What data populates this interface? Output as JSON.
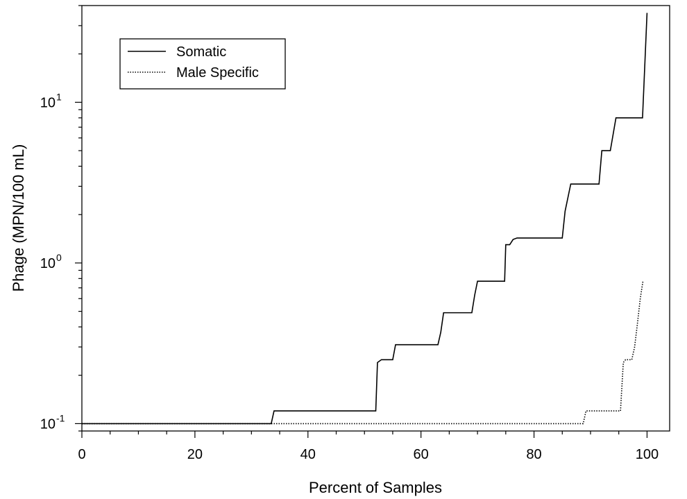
{
  "chart_data": {
    "type": "line",
    "xlabel": "Percent of Samples",
    "ylabel": "Phage (MPN/100 mL)",
    "xlim": [
      0,
      104
    ],
    "ylim": [
      0.09,
      40
    ],
    "yscale": "log",
    "x_ticks": [
      0,
      20,
      40,
      60,
      80,
      100
    ],
    "y_ticks": [
      {
        "value": 0.1,
        "base": "10",
        "exp": "-1"
      },
      {
        "value": 1,
        "base": "10",
        "exp": "0"
      },
      {
        "value": 10,
        "base": "10",
        "exp": "1"
      }
    ],
    "grid": false,
    "legend_position": "top-left",
    "series": [
      {
        "name": "Somatic",
        "style": "solid",
        "color": "#000000",
        "x": [
          0,
          33.5,
          34,
          52,
          52.3,
          53,
          54,
          55,
          55.5,
          63,
          63.5,
          64,
          69,
          69.5,
          70,
          74.8,
          75,
          75.7,
          76.3,
          77,
          85,
          85.5,
          86.5,
          91.5,
          92,
          93.5,
          94.5,
          99.2,
          100
        ],
        "y": [
          0.1,
          0.1,
          0.12,
          0.12,
          0.24,
          0.25,
          0.25,
          0.25,
          0.31,
          0.31,
          0.37,
          0.49,
          0.49,
          0.63,
          0.77,
          0.77,
          1.3,
          1.3,
          1.4,
          1.43,
          1.43,
          2.1,
          3.1,
          3.1,
          5,
          5,
          8,
          8,
          36
        ]
      },
      {
        "name": "Male Specific",
        "style": "dotted",
        "color": "#000000",
        "x": [
          0,
          88.7,
          89.2,
          95.3,
          95.8,
          96.2,
          97.3,
          97.8,
          98.3,
          98.8,
          99.3
        ],
        "y": [
          0.1,
          0.1,
          0.12,
          0.12,
          0.24,
          0.25,
          0.25,
          0.3,
          0.42,
          0.6,
          0.78
        ]
      }
    ]
  }
}
